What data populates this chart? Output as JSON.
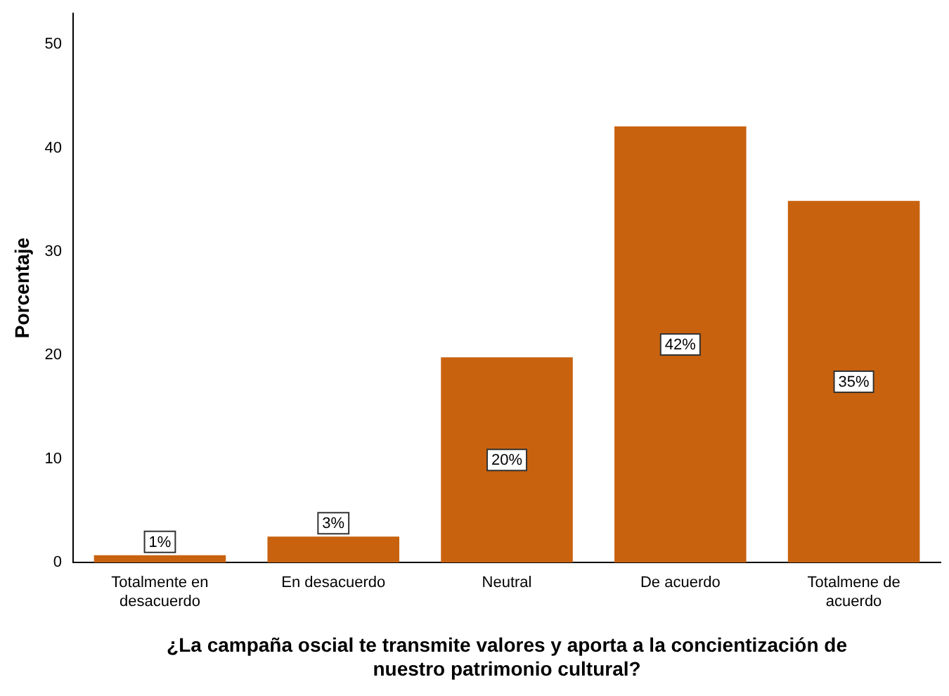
{
  "chart_data": {
    "type": "bar",
    "xlabel": "¿La campaña oscial te transmite valores y aporta a la concientización de nuestro patrimonio cultural?",
    "ylabel": "Porcentaje",
    "categories": [
      "Totalmente en desacuerdo",
      "En desacuerdo",
      "Neutral",
      "De acuerdo",
      "Totalmene de acuerdo"
    ],
    "values": [
      0.7,
      2.5,
      19.8,
      42.1,
      34.9
    ],
    "value_labels": [
      "1%",
      "3%",
      "20%",
      "42%",
      "35%"
    ],
    "color": "#c8620f",
    "ylim": [
      0,
      53
    ],
    "yticks": [
      0,
      10,
      20,
      30,
      40,
      50
    ],
    "grid": false,
    "legend": false
  }
}
